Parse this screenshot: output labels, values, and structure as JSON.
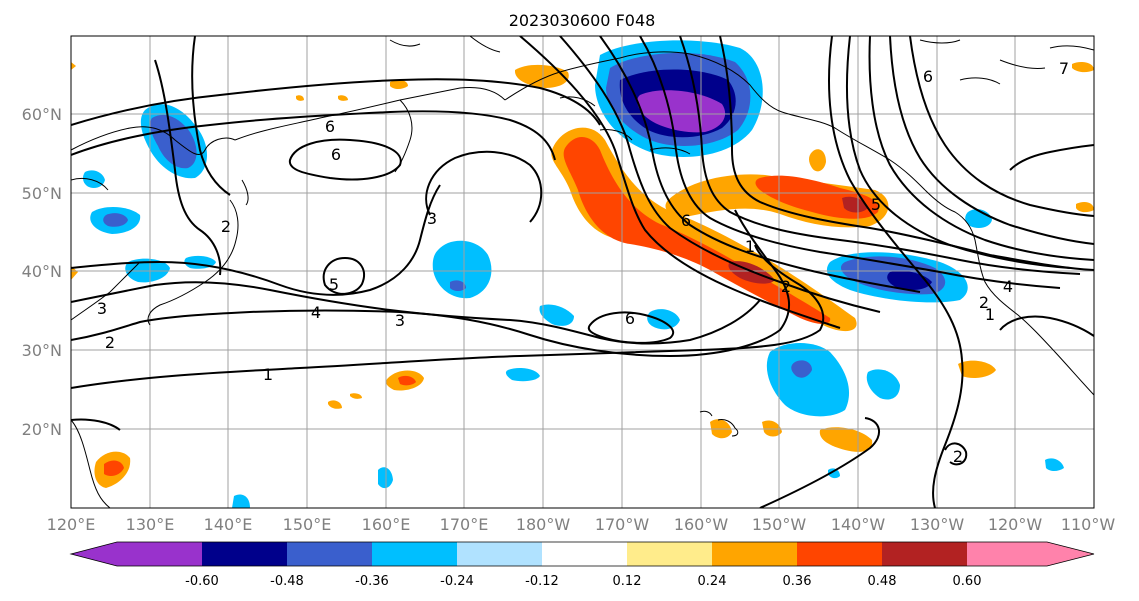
{
  "title": "2023030600 F048",
  "colors": {
    "n060": "#9932cc",
    "n048": "#00008b",
    "n036": "#3a5fcd",
    "n024": "#00bfff",
    "n012": "#b0e2ff",
    "zero": "#ffffff",
    "p012": "#ffec8b",
    "p024": "#ffa500",
    "p036": "#ff4500",
    "p048": "#b22222",
    "p060": "#ff82ab"
  },
  "lat_labels": [
    "60°N",
    "50°N",
    "40°N",
    "30°N",
    "20°N"
  ],
  "lon_labels": [
    "120°E",
    "130°E",
    "140°E",
    "150°E",
    "160°E",
    "170°E",
    "180°W",
    "170°W",
    "160°W",
    "150°W",
    "140°W",
    "130°W",
    "120°W",
    "110°W"
  ],
  "colorbar": {
    "ticks": [
      "-0.60",
      "-0.48",
      "-0.36",
      "-0.24",
      "-0.12",
      "0.12",
      "0.24",
      "0.36",
      "0.48",
      "0.60"
    ]
  },
  "contour_labels": [
    "6",
    "6",
    "3",
    "2",
    "3",
    "2",
    "4",
    "3",
    "5",
    "1",
    "6",
    "6",
    "1",
    "2",
    "5",
    "1",
    "2",
    "4",
    "6",
    "2",
    "7"
  ]
}
